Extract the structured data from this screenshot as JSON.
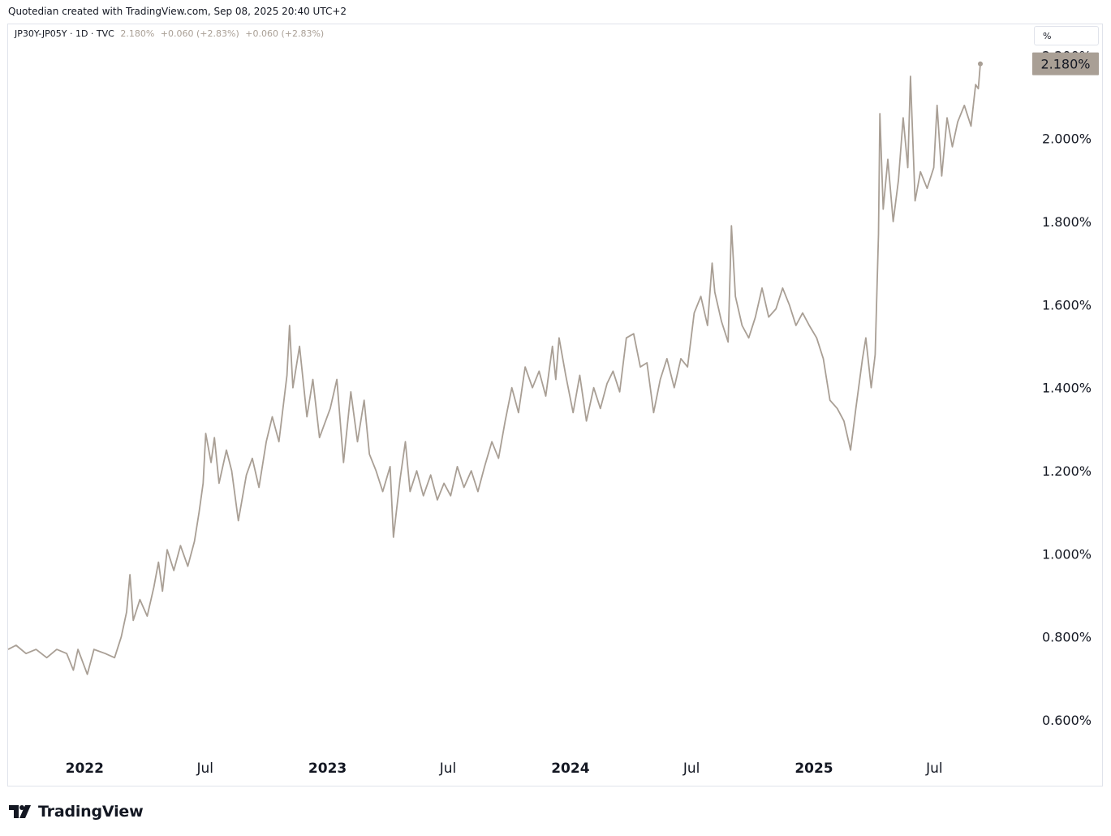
{
  "header": {
    "caption": "Quotedian created with TradingView.com, Sep 08, 2025 20:40 UTC+2"
  },
  "legend": {
    "symbol": "JP30Y-JP05Y · 1D · TVC",
    "last": "2.180%",
    "change": "+0.060 (+2.83%)",
    "change2": "+0.060 (+2.83%)"
  },
  "unit_box": {
    "label": "%"
  },
  "last_price_tag": "2.180%",
  "branding": {
    "logo_text": "TradingView"
  },
  "colors": {
    "line": "#a99f95",
    "tag_bg": "#a99f95",
    "text": "#131722",
    "border": "#e0e3eb"
  },
  "chart_data": {
    "type": "line",
    "title": "",
    "xlabel": "",
    "ylabel": "",
    "ylim": [
      0.52,
      2.275
    ],
    "y_ticks": [
      0.6,
      0.8,
      1.0,
      1.2,
      1.4,
      1.6,
      1.8,
      2.0,
      2.2
    ],
    "y_tick_labels": [
      "0.600%",
      "0.800%",
      "1.000%",
      "1.200%",
      "1.400%",
      "1.600%",
      "1.800%",
      "2.000%",
      "2.200%"
    ],
    "x_range": [
      "2021-09-08",
      "2025-11-08"
    ],
    "x_ticks": [
      "2022-01-01",
      "2022-07-01",
      "2023-01-01",
      "2023-07-01",
      "2024-01-01",
      "2024-07-01",
      "2025-01-01",
      "2025-07-01"
    ],
    "x_tick_labels": [
      "2022",
      "Jul",
      "2023",
      "Jul",
      "2024",
      "Jul",
      "2025",
      "Jul"
    ],
    "x_tick_bold": [
      true,
      false,
      true,
      false,
      true,
      false,
      true,
      false
    ],
    "series": [
      {
        "points": [
          [
            "2021-09-08",
            0.77
          ],
          [
            "2021-09-20",
            0.78
          ],
          [
            "2021-10-05",
            0.76
          ],
          [
            "2021-10-20",
            0.77
          ],
          [
            "2021-11-05",
            0.75
          ],
          [
            "2021-11-20",
            0.77
          ],
          [
            "2021-12-05",
            0.76
          ],
          [
            "2021-12-15",
            0.72
          ],
          [
            "2021-12-22",
            0.77
          ],
          [
            "2022-01-05",
            0.71
          ],
          [
            "2022-01-15",
            0.77
          ],
          [
            "2022-02-01",
            0.76
          ],
          [
            "2022-02-15",
            0.75
          ],
          [
            "2022-02-25",
            0.8
          ],
          [
            "2022-03-05",
            0.86
          ],
          [
            "2022-03-10",
            0.95
          ],
          [
            "2022-03-15",
            0.84
          ],
          [
            "2022-03-25",
            0.89
          ],
          [
            "2022-04-05",
            0.85
          ],
          [
            "2022-04-15",
            0.92
          ],
          [
            "2022-04-22",
            0.98
          ],
          [
            "2022-04-28",
            0.91
          ],
          [
            "2022-05-05",
            1.01
          ],
          [
            "2022-05-15",
            0.96
          ],
          [
            "2022-05-25",
            1.02
          ],
          [
            "2022-06-05",
            0.97
          ],
          [
            "2022-06-15",
            1.03
          ],
          [
            "2022-06-22",
            1.1
          ],
          [
            "2022-06-28",
            1.17
          ],
          [
            "2022-07-02",
            1.29
          ],
          [
            "2022-07-10",
            1.22
          ],
          [
            "2022-07-15",
            1.28
          ],
          [
            "2022-07-22",
            1.17
          ],
          [
            "2022-08-02",
            1.25
          ],
          [
            "2022-08-10",
            1.2
          ],
          [
            "2022-08-20",
            1.08
          ],
          [
            "2022-09-01",
            1.19
          ],
          [
            "2022-09-10",
            1.23
          ],
          [
            "2022-09-20",
            1.16
          ],
          [
            "2022-10-01",
            1.27
          ],
          [
            "2022-10-10",
            1.33
          ],
          [
            "2022-10-20",
            1.27
          ],
          [
            "2022-11-01",
            1.43
          ],
          [
            "2022-11-05",
            1.55
          ],
          [
            "2022-11-10",
            1.4
          ],
          [
            "2022-11-20",
            1.5
          ],
          [
            "2022-12-01",
            1.33
          ],
          [
            "2022-12-10",
            1.42
          ],
          [
            "2022-12-20",
            1.28
          ],
          [
            "2023-01-05",
            1.35
          ],
          [
            "2023-01-15",
            1.42
          ],
          [
            "2023-01-25",
            1.22
          ],
          [
            "2023-02-05",
            1.39
          ],
          [
            "2023-02-15",
            1.27
          ],
          [
            "2023-02-25",
            1.37
          ],
          [
            "2023-03-05",
            1.24
          ],
          [
            "2023-03-15",
            1.2
          ],
          [
            "2023-03-25",
            1.15
          ],
          [
            "2023-04-05",
            1.21
          ],
          [
            "2023-04-10",
            1.04
          ],
          [
            "2023-04-20",
            1.18
          ],
          [
            "2023-04-28",
            1.27
          ],
          [
            "2023-05-05",
            1.15
          ],
          [
            "2023-05-15",
            1.2
          ],
          [
            "2023-05-25",
            1.14
          ],
          [
            "2023-06-05",
            1.19
          ],
          [
            "2023-06-15",
            1.13
          ],
          [
            "2023-06-25",
            1.17
          ],
          [
            "2023-07-05",
            1.14
          ],
          [
            "2023-07-15",
            1.21
          ],
          [
            "2023-07-25",
            1.16
          ],
          [
            "2023-08-05",
            1.2
          ],
          [
            "2023-08-15",
            1.15
          ],
          [
            "2023-08-25",
            1.21
          ],
          [
            "2023-09-05",
            1.27
          ],
          [
            "2023-09-15",
            1.23
          ],
          [
            "2023-09-25",
            1.32
          ],
          [
            "2023-10-05",
            1.4
          ],
          [
            "2023-10-15",
            1.34
          ],
          [
            "2023-10-25",
            1.45
          ],
          [
            "2023-11-05",
            1.4
          ],
          [
            "2023-11-15",
            1.44
          ],
          [
            "2023-11-25",
            1.38
          ],
          [
            "2023-12-05",
            1.5
          ],
          [
            "2023-12-10",
            1.42
          ],
          [
            "2023-12-15",
            1.52
          ],
          [
            "2023-12-25",
            1.43
          ],
          [
            "2024-01-05",
            1.34
          ],
          [
            "2024-01-15",
            1.43
          ],
          [
            "2024-01-25",
            1.32
          ],
          [
            "2024-02-05",
            1.4
          ],
          [
            "2024-02-15",
            1.35
          ],
          [
            "2024-02-25",
            1.41
          ],
          [
            "2024-03-05",
            1.44
          ],
          [
            "2024-03-15",
            1.39
          ],
          [
            "2024-03-25",
            1.52
          ],
          [
            "2024-04-05",
            1.53
          ],
          [
            "2024-04-15",
            1.45
          ],
          [
            "2024-04-25",
            1.46
          ],
          [
            "2024-05-05",
            1.34
          ],
          [
            "2024-05-15",
            1.42
          ],
          [
            "2024-05-25",
            1.47
          ],
          [
            "2024-06-05",
            1.4
          ],
          [
            "2024-06-15",
            1.47
          ],
          [
            "2024-06-25",
            1.45
          ],
          [
            "2024-07-05",
            1.58
          ],
          [
            "2024-07-15",
            1.62
          ],
          [
            "2024-07-25",
            1.55
          ],
          [
            "2024-08-01",
            1.7
          ],
          [
            "2024-08-05",
            1.63
          ],
          [
            "2024-08-15",
            1.56
          ],
          [
            "2024-08-25",
            1.51
          ],
          [
            "2024-08-30",
            1.79
          ],
          [
            "2024-09-05",
            1.62
          ],
          [
            "2024-09-15",
            1.55
          ],
          [
            "2024-09-25",
            1.52
          ],
          [
            "2024-10-05",
            1.57
          ],
          [
            "2024-10-15",
            1.64
          ],
          [
            "2024-10-25",
            1.57
          ],
          [
            "2024-11-05",
            1.59
          ],
          [
            "2024-11-15",
            1.64
          ],
          [
            "2024-11-25",
            1.6
          ],
          [
            "2024-12-05",
            1.55
          ],
          [
            "2024-12-15",
            1.58
          ],
          [
            "2024-12-25",
            1.55
          ],
          [
            "2025-01-05",
            1.52
          ],
          [
            "2025-01-15",
            1.47
          ],
          [
            "2025-01-25",
            1.37
          ],
          [
            "2025-02-05",
            1.35
          ],
          [
            "2025-02-15",
            1.32
          ],
          [
            "2025-02-25",
            1.25
          ],
          [
            "2025-03-05",
            1.35
          ],
          [
            "2025-03-15",
            1.47
          ],
          [
            "2025-03-20",
            1.52
          ],
          [
            "2025-03-28",
            1.4
          ],
          [
            "2025-04-03",
            1.48
          ],
          [
            "2025-04-08",
            1.77
          ],
          [
            "2025-04-10",
            2.06
          ],
          [
            "2025-04-15",
            1.83
          ],
          [
            "2025-04-22",
            1.95
          ],
          [
            "2025-04-30",
            1.8
          ],
          [
            "2025-05-08",
            1.9
          ],
          [
            "2025-05-15",
            2.05
          ],
          [
            "2025-05-22",
            1.93
          ],
          [
            "2025-05-26",
            2.15
          ],
          [
            "2025-06-02",
            1.85
          ],
          [
            "2025-06-10",
            1.92
          ],
          [
            "2025-06-20",
            1.88
          ],
          [
            "2025-06-30",
            1.93
          ],
          [
            "2025-07-05",
            2.08
          ],
          [
            "2025-07-12",
            1.91
          ],
          [
            "2025-07-20",
            2.05
          ],
          [
            "2025-07-28",
            1.98
          ],
          [
            "2025-08-05",
            2.04
          ],
          [
            "2025-08-15",
            2.08
          ],
          [
            "2025-08-25",
            2.03
          ],
          [
            "2025-09-01",
            2.13
          ],
          [
            "2025-09-05",
            2.12
          ],
          [
            "2025-09-08",
            2.18
          ]
        ]
      }
    ]
  }
}
